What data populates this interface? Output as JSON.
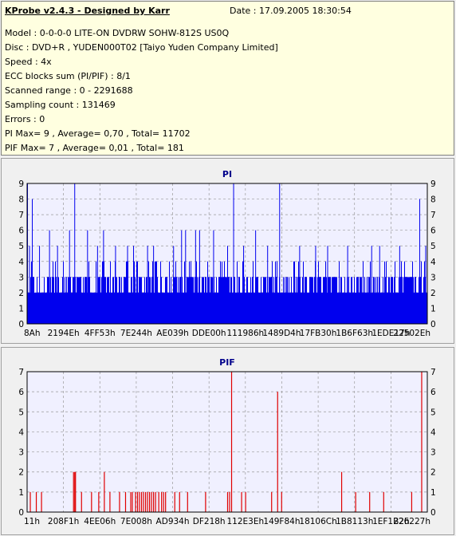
{
  "info": {
    "title": "KProbe v2.4.3 - Designed by Karr",
    "date": "Date : 17.09.2005 18:30:54",
    "rows": [
      "Model : 0-0-0-0 LITE-ON DVDRW SOHW-812S  US0Q",
      "Disc : DVD+R , YUDEN000T02 [Taiyo Yuden Company Limited]",
      "Speed : 4x",
      "ECC blocks sum (PI/PIF) : 8/1",
      "Scanned range : 0 - 2291688",
      "Sampling count : 131469",
      "Errors : 0",
      "PI Max= 9 , Average= 0,70 , Total= 11702",
      "PIF Max= 7 , Average= 0,01 , Total= 181"
    ]
  },
  "colors": {
    "plot_bg": "#f0f0ff",
    "pi": "#0000ee",
    "pif": "#e00000",
    "grid": "#9a9a9a"
  },
  "chart_data": [
    {
      "type": "bar",
      "title": "PI",
      "ylim": [
        0,
        9
      ],
      "yticks": [
        "0",
        "1",
        "2",
        "3",
        "4",
        "5",
        "6",
        "7",
        "8",
        "9"
      ],
      "xticks": [
        "8Ah",
        "2194Eh",
        "4FF53h",
        "7E244h",
        "AE039h",
        "DDE00h",
        "111986h",
        "1489D4h",
        "17FB30h",
        "1B6F63h",
        "1EDE17h",
        "22502Eh"
      ],
      "grid": true,
      "peaks": [
        {
          "pos": 0.0,
          "v": 9
        },
        {
          "pos": 0.005,
          "v": 5
        },
        {
          "pos": 0.012,
          "v": 8
        },
        {
          "pos": 0.03,
          "v": 5
        },
        {
          "pos": 0.055,
          "v": 6
        },
        {
          "pos": 0.075,
          "v": 5
        },
        {
          "pos": 0.105,
          "v": 6
        },
        {
          "pos": 0.118,
          "v": 9
        },
        {
          "pos": 0.15,
          "v": 6
        },
        {
          "pos": 0.175,
          "v": 5
        },
        {
          "pos": 0.19,
          "v": 6
        },
        {
          "pos": 0.22,
          "v": 5
        },
        {
          "pos": 0.25,
          "v": 5
        },
        {
          "pos": 0.265,
          "v": 5
        },
        {
          "pos": 0.3,
          "v": 5
        },
        {
          "pos": 0.315,
          "v": 5
        },
        {
          "pos": 0.365,
          "v": 5
        },
        {
          "pos": 0.385,
          "v": 6
        },
        {
          "pos": 0.395,
          "v": 6
        },
        {
          "pos": 0.42,
          "v": 6
        },
        {
          "pos": 0.43,
          "v": 6
        },
        {
          "pos": 0.465,
          "v": 6
        },
        {
          "pos": 0.5,
          "v": 5
        },
        {
          "pos": 0.515,
          "v": 9
        },
        {
          "pos": 0.54,
          "v": 5
        },
        {
          "pos": 0.57,
          "v": 6
        },
        {
          "pos": 0.6,
          "v": 5
        },
        {
          "pos": 0.63,
          "v": 9
        },
        {
          "pos": 0.68,
          "v": 5
        },
        {
          "pos": 0.72,
          "v": 5
        },
        {
          "pos": 0.75,
          "v": 5
        },
        {
          "pos": 0.8,
          "v": 5
        },
        {
          "pos": 0.86,
          "v": 5
        },
        {
          "pos": 0.88,
          "v": 5
        },
        {
          "pos": 0.93,
          "v": 5
        },
        {
          "pos": 0.98,
          "v": 8
        },
        {
          "pos": 0.995,
          "v": 5
        }
      ]
    },
    {
      "type": "bar",
      "title": "PIF",
      "ylim": [
        0,
        7
      ],
      "yticks": [
        "0",
        "1",
        "2",
        "3",
        "4",
        "5",
        "6",
        "7"
      ],
      "xticks": [
        "11h",
        "208F1h",
        "4EE06h",
        "7E008h",
        "AD934h",
        "DF218h",
        "112E3Eh",
        "149F84h",
        "18106Ch",
        "1B8113h",
        "1EF1B2h",
        "226227h"
      ],
      "grid": true,
      "bars": [
        {
          "pos": 0.007,
          "v": 1
        },
        {
          "pos": 0.022,
          "v": 1
        },
        {
          "pos": 0.035,
          "v": 1
        },
        {
          "pos": 0.115,
          "v": 2
        },
        {
          "pos": 0.118,
          "v": 2
        },
        {
          "pos": 0.12,
          "v": 2
        },
        {
          "pos": 0.135,
          "v": 1
        },
        {
          "pos": 0.16,
          "v": 1
        },
        {
          "pos": 0.178,
          "v": 1
        },
        {
          "pos": 0.192,
          "v": 2
        },
        {
          "pos": 0.206,
          "v": 1
        },
        {
          "pos": 0.23,
          "v": 1
        },
        {
          "pos": 0.245,
          "v": 1
        },
        {
          "pos": 0.258,
          "v": 1
        },
        {
          "pos": 0.262,
          "v": 1
        },
        {
          "pos": 0.27,
          "v": 1
        },
        {
          "pos": 0.275,
          "v": 1
        },
        {
          "pos": 0.28,
          "v": 1
        },
        {
          "pos": 0.285,
          "v": 1
        },
        {
          "pos": 0.29,
          "v": 1
        },
        {
          "pos": 0.295,
          "v": 1
        },
        {
          "pos": 0.3,
          "v": 1
        },
        {
          "pos": 0.305,
          "v": 1
        },
        {
          "pos": 0.31,
          "v": 1
        },
        {
          "pos": 0.315,
          "v": 1
        },
        {
          "pos": 0.32,
          "v": 1
        },
        {
          "pos": 0.328,
          "v": 1
        },
        {
          "pos": 0.335,
          "v": 1
        },
        {
          "pos": 0.34,
          "v": 1
        },
        {
          "pos": 0.345,
          "v": 1
        },
        {
          "pos": 0.368,
          "v": 1
        },
        {
          "pos": 0.38,
          "v": 1
        },
        {
          "pos": 0.4,
          "v": 1
        },
        {
          "pos": 0.445,
          "v": 1
        },
        {
          "pos": 0.5,
          "v": 1
        },
        {
          "pos": 0.505,
          "v": 1
        },
        {
          "pos": 0.51,
          "v": 7
        },
        {
          "pos": 0.535,
          "v": 1
        },
        {
          "pos": 0.545,
          "v": 1
        },
        {
          "pos": 0.61,
          "v": 1
        },
        {
          "pos": 0.625,
          "v": 6
        },
        {
          "pos": 0.635,
          "v": 1
        },
        {
          "pos": 0.785,
          "v": 2
        },
        {
          "pos": 0.82,
          "v": 1
        },
        {
          "pos": 0.855,
          "v": 1
        },
        {
          "pos": 0.89,
          "v": 1
        },
        {
          "pos": 0.96,
          "v": 1
        },
        {
          "pos": 0.985,
          "v": 7
        }
      ]
    }
  ]
}
